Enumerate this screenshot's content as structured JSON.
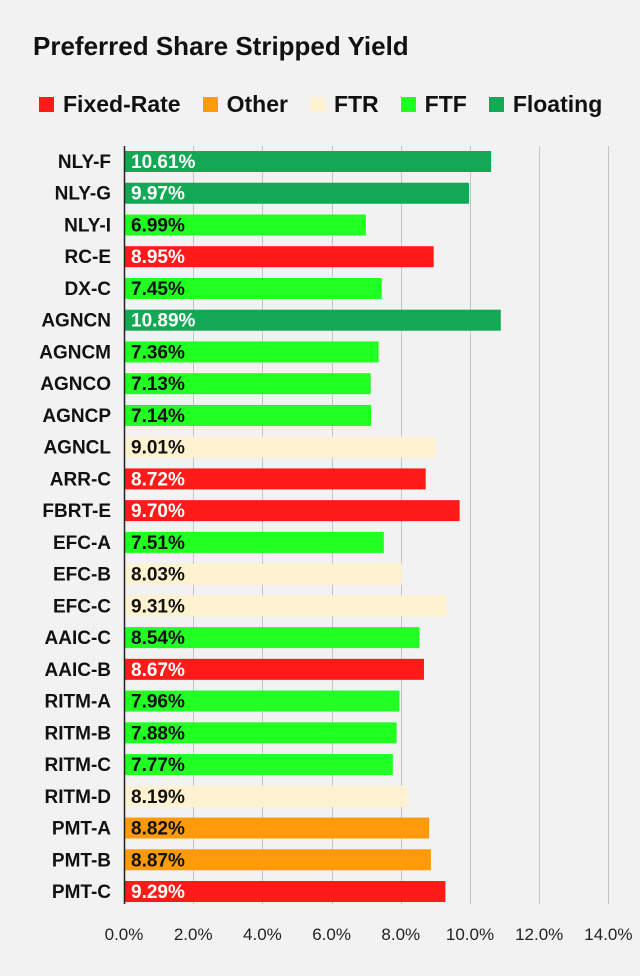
{
  "chart_data": {
    "type": "bar",
    "orientation": "horizontal",
    "title": "Preferred Share Stripped Yield",
    "legend_position": "top",
    "grid": true,
    "xlim": [
      0,
      14
    ],
    "x_ticks": [
      0,
      2,
      4,
      6,
      8,
      10,
      12,
      14
    ],
    "x_tick_labels": [
      "0.0%",
      "2.0%",
      "4.0%",
      "6.0%",
      "8.0%",
      "10.0%",
      "12.0%",
      "14.0%"
    ],
    "legend": [
      {
        "name": "Fixed-Rate",
        "color": "#ff1a1a"
      },
      {
        "name": "Other",
        "color": "#ff9a0a"
      },
      {
        "name": "FTR",
        "color": "#fff2d1"
      },
      {
        "name": "FTF",
        "color": "#22ff22"
      },
      {
        "name": "Floating",
        "color": "#12a854"
      }
    ],
    "bars": [
      {
        "category": "NLY-F",
        "value": 10.61,
        "label": "10.61%",
        "type": "Floating"
      },
      {
        "category": "NLY-G",
        "value": 9.97,
        "label": "9.97%",
        "type": "Floating"
      },
      {
        "category": "NLY-I",
        "value": 6.99,
        "label": "6.99%",
        "type": "FTF"
      },
      {
        "category": "RC-E",
        "value": 8.95,
        "label": "8.95%",
        "type": "Fixed-Rate"
      },
      {
        "category": "DX-C",
        "value": 7.45,
        "label": "7.45%",
        "type": "FTF"
      },
      {
        "category": "AGNCN",
        "value": 10.89,
        "label": "10.89%",
        "type": "Floating"
      },
      {
        "category": "AGNCM",
        "value": 7.36,
        "label": "7.36%",
        "type": "FTF"
      },
      {
        "category": "AGNCO",
        "value": 7.13,
        "label": "7.13%",
        "type": "FTF"
      },
      {
        "category": "AGNCP",
        "value": 7.14,
        "label": "7.14%",
        "type": "FTF"
      },
      {
        "category": "AGNCL",
        "value": 9.01,
        "label": "9.01%",
        "type": "FTR"
      },
      {
        "category": "ARR-C",
        "value": 8.72,
        "label": "8.72%",
        "type": "Fixed-Rate"
      },
      {
        "category": "FBRT-E",
        "value": 9.7,
        "label": "9.70%",
        "type": "Fixed-Rate"
      },
      {
        "category": "EFC-A",
        "value": 7.51,
        "label": "7.51%",
        "type": "FTF"
      },
      {
        "category": "EFC-B",
        "value": 8.03,
        "label": "8.03%",
        "type": "FTR"
      },
      {
        "category": "EFC-C",
        "value": 9.31,
        "label": "9.31%",
        "type": "FTR"
      },
      {
        "category": "AAIC-C",
        "value": 8.54,
        "label": "8.54%",
        "type": "FTF"
      },
      {
        "category": "AAIC-B",
        "value": 8.67,
        "label": "8.67%",
        "type": "Fixed-Rate"
      },
      {
        "category": "RITM-A",
        "value": 7.96,
        "label": "7.96%",
        "type": "FTF"
      },
      {
        "category": "RITM-B",
        "value": 7.88,
        "label": "7.88%",
        "type": "FTF"
      },
      {
        "category": "RITM-C",
        "value": 7.77,
        "label": "7.77%",
        "type": "FTF"
      },
      {
        "category": "RITM-D",
        "value": 8.19,
        "label": "8.19%",
        "type": "FTR"
      },
      {
        "category": "PMT-A",
        "value": 8.82,
        "label": "8.82%",
        "type": "Other"
      },
      {
        "category": "PMT-B",
        "value": 8.87,
        "label": "8.87%",
        "type": "Other"
      },
      {
        "category": "PMT-C",
        "value": 9.29,
        "label": "9.29%",
        "type": "Fixed-Rate"
      }
    ]
  }
}
